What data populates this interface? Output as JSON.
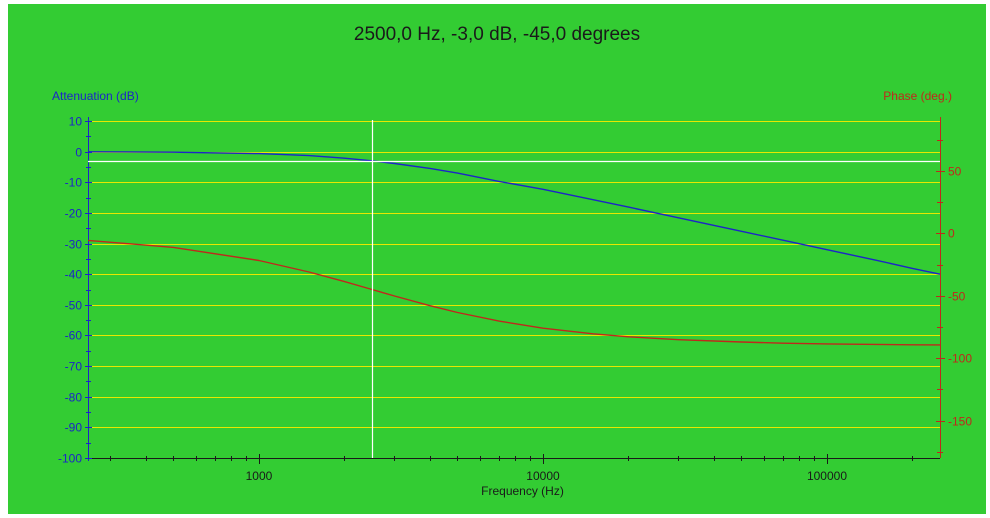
{
  "readout": "2500,0 Hz, -3,0 dB, -45,0 degrees",
  "colors": {
    "background": "#33cc33",
    "grid": "#e8e800",
    "attenuation": "#1c25c8",
    "phase": "#c0281c",
    "cursor": "#ffffff"
  },
  "chart_data": {
    "type": "line",
    "title": "2500,0 Hz, -3,0 dB, -45,0 degrees",
    "xlabel": "Frequency (Hz)",
    "ylabel": "Attenuation (dB)",
    "y2label": "Phase (deg.)",
    "xscale": "log",
    "xlim": [
      250,
      250000
    ],
    "ylim": [
      -100,
      10
    ],
    "y2lim": [
      -180,
      90
    ],
    "grid": true,
    "cursor": {
      "x": 2500,
      "attenuation": -3.0,
      "phase": -45.0
    },
    "x_ticks": [
      1000,
      10000,
      100000
    ],
    "y_ticks": [
      10,
      0,
      -10,
      -20,
      -30,
      -40,
      -50,
      -60,
      -70,
      -80,
      -90,
      -100
    ],
    "y2_ticks": [
      50,
      0,
      -50,
      -100,
      -150
    ],
    "series": [
      {
        "name": "Attenuation (dB)",
        "axis": "left",
        "x": [
          250,
          500,
          1000,
          1500,
          2000,
          2500,
          3000,
          4000,
          5000,
          7000,
          10000,
          15000,
          20000,
          30000,
          50000,
          70000,
          100000,
          150000,
          200000,
          250000
        ],
        "values": [
          -0.04,
          -0.17,
          -0.64,
          -1.31,
          -2.15,
          -3.0,
          -3.87,
          -5.46,
          -6.99,
          -9.7,
          -12.3,
          -15.7,
          -18.1,
          -21.6,
          -26.0,
          -28.9,
          -32.0,
          -35.5,
          -38.1,
          -40.0
        ]
      },
      {
        "name": "Phase (deg.)",
        "axis": "right",
        "x": [
          250,
          500,
          1000,
          1500,
          2000,
          2500,
          3000,
          4000,
          5000,
          7000,
          10000,
          15000,
          20000,
          30000,
          50000,
          70000,
          100000,
          150000,
          200000,
          250000
        ],
        "values": [
          -5.7,
          -11.3,
          -21.8,
          -31.0,
          -38.7,
          -45.0,
          -50.2,
          -58.0,
          -63.4,
          -70.3,
          -76.0,
          -80.5,
          -82.9,
          -85.2,
          -87.1,
          -88.0,
          -88.6,
          -89.0,
          -89.3,
          -89.4
        ]
      }
    ]
  }
}
